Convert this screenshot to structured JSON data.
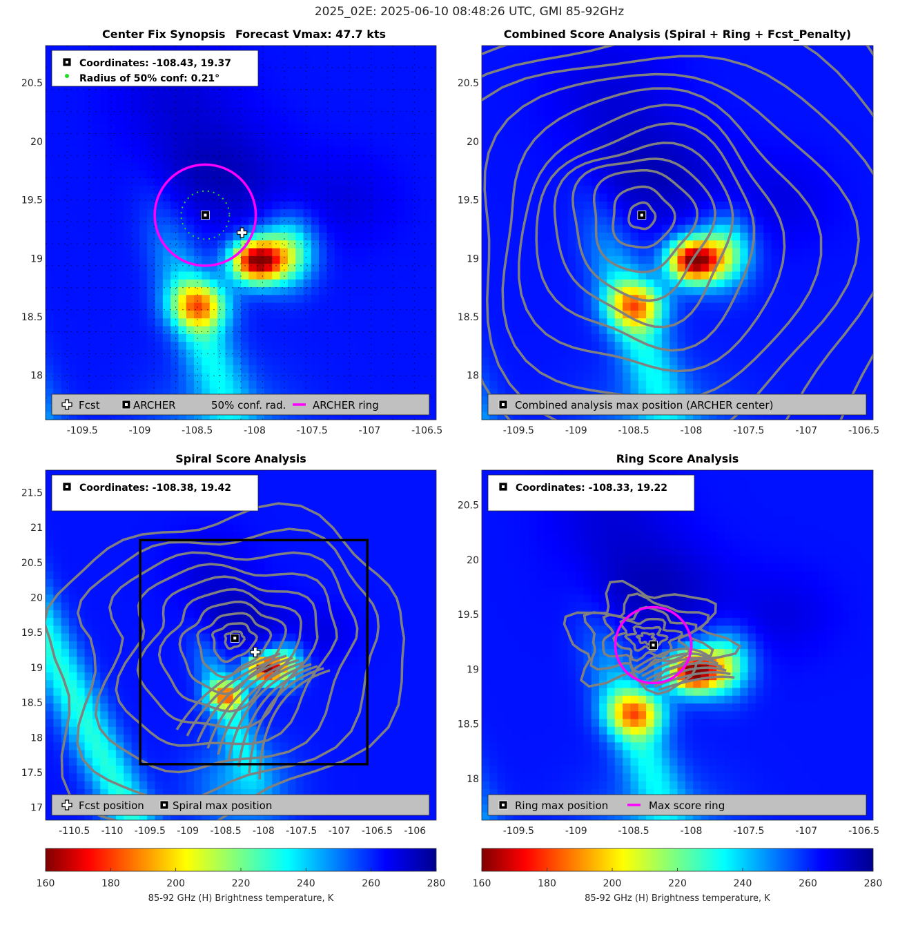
{
  "suptitle": "2025_02E: 2025-06-10 08:48:26 UTC, GMI 85-92GHz",
  "colors": {
    "fcst_marker": "#ffffff",
    "archer_marker": "#000000",
    "conf_ring": "#22dd22",
    "archer_ring": "#ff00ff",
    "contour": "#808080",
    "legend_box_bg": "#c0c0c0"
  },
  "colormap": "jet_reversed",
  "colorbars": [
    {
      "label": "85-92 GHz (H) Brightness temperature, K",
      "ticks": [
        "160",
        "180",
        "200",
        "220",
        "240",
        "260",
        "280"
      ],
      "range": [
        160,
        280
      ]
    },
    {
      "label": "85-92 GHz (H) Brightness temperature, K",
      "ticks": [
        "160",
        "180",
        "200",
        "220",
        "240",
        "260",
        "280"
      ],
      "range": [
        160,
        280
      ]
    }
  ],
  "chart_data": [
    {
      "type": "heatmap",
      "title_left": "Center Fix Synopsis",
      "title_right": "Forecast Vmax: 47.7 kts",
      "xlim": [
        -109.82,
        -106.42
      ],
      "ylim": [
        17.62,
        20.82
      ],
      "xticks": [
        "-109.5",
        "-109",
        "-108.5",
        "-108",
        "-107.5",
        "-107",
        "-106.5"
      ],
      "yticks": [
        "18",
        "18.5",
        "19",
        "19.5",
        "20",
        "20.5"
      ],
      "grid": true,
      "info_lines": [
        "Coordinates: -108.43, 19.37",
        "Radius of 50% conf: 0.21°"
      ],
      "legend": [
        "Fcst",
        "ARCHER",
        "50% conf. rad.",
        "ARCHER ring"
      ],
      "center": {
        "lon": -108.43,
        "lat": 19.37
      },
      "fcst": {
        "lon": -108.11,
        "lat": 19.22
      },
      "conf_radius_deg": 0.21,
      "ring_radius_deg": 0.44
    },
    {
      "type": "heatmap",
      "title": "Combined Score Analysis (Spiral + Ring + Fcst_Penalty)",
      "xlim": [
        -109.82,
        -106.42
      ],
      "ylim": [
        17.62,
        20.82
      ],
      "xticks": [
        "-109.5",
        "-109",
        "-108.5",
        "-108",
        "-107.5",
        "-107",
        "-106.5"
      ],
      "yticks": [
        "18",
        "18.5",
        "19",
        "19.5",
        "20",
        "20.5"
      ],
      "legend": [
        "Combined analysis max position (ARCHER center)"
      ],
      "center": {
        "lon": -108.43,
        "lat": 19.37
      },
      "contours": "combined_score"
    },
    {
      "type": "heatmap",
      "title": "Spiral Score Analysis",
      "xlim": [
        -110.88,
        -105.72
      ],
      "ylim": [
        16.82,
        21.82
      ],
      "xticks": [
        "-110.5",
        "-110",
        "-109.5",
        "-109",
        "-108.5",
        "-108",
        "-107.5",
        "-107",
        "-106.5",
        "-106"
      ],
      "yticks": [
        "17",
        "17.5",
        "18",
        "18.5",
        "19",
        "19.5",
        "20",
        "20.5",
        "21",
        "21.5"
      ],
      "info_lines": [
        "Coordinates: -108.38, 19.42"
      ],
      "legend": [
        "Fcst position",
        "Spiral max position"
      ],
      "center": {
        "lon": -108.38,
        "lat": 19.42
      },
      "fcst": {
        "lon": -108.11,
        "lat": 19.22
      },
      "search_box": {
        "lon": [
          -109.63,
          -106.63
        ],
        "lat": [
          17.62,
          20.82
        ]
      },
      "contours": "spiral_score"
    },
    {
      "type": "heatmap",
      "title": "Ring Score Analysis",
      "xlim": [
        -109.82,
        -106.42
      ],
      "ylim": [
        17.62,
        20.82
      ],
      "xticks": [
        "-109.5",
        "-109",
        "-108.5",
        "-108",
        "-107.5",
        "-107",
        "-106.5"
      ],
      "yticks": [
        "18",
        "18.5",
        "19",
        "19.5",
        "20",
        "20.5"
      ],
      "info_lines": [
        "Coordinates: -108.33, 19.22"
      ],
      "legend": [
        "Ring max position",
        "Max score ring"
      ],
      "center": {
        "lon": -108.33,
        "lat": 19.22
      },
      "ring_radius_deg": 0.33,
      "contours": "ring_score"
    }
  ]
}
